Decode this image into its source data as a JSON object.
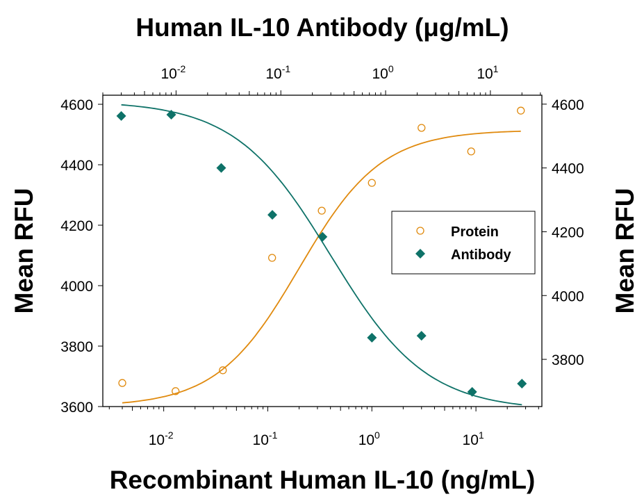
{
  "chart_data": {
    "type": "scatter",
    "title": "Human IL-10 Antibody (μg/mL)",
    "xlabel": "Recombinant Human IL-10 (ng/mL)",
    "x2label": "Human IL-10 Antibody (μg/mL)",
    "ylabel": "Mean RFU",
    "y2label": "Mean RFU",
    "xscale": "log",
    "xlim": [
      0.0026,
      43
    ],
    "x2lim": [
      0.002,
      31
    ],
    "ylim": [
      3600,
      4630
    ],
    "y2lim": [
      3652,
      4628
    ],
    "x_ticks": [
      "10^-2",
      "10^-1",
      "10^0",
      "10^1"
    ],
    "x2_ticks": [
      "10^-2",
      "10^-1",
      "10^0",
      "10^1"
    ],
    "y_ticks": [
      3600,
      3800,
      4000,
      4200,
      4400,
      4600
    ],
    "y2_ticks": [
      3800,
      4000,
      4200,
      4400,
      4600
    ],
    "grid": false,
    "legend": "center-right",
    "series": [
      {
        "name": "Protein",
        "axis": "bottom-left",
        "marker": "open-circle",
        "color": "#E08A0E",
        "x": [
          0.004,
          0.013,
          0.037,
          0.11,
          0.33,
          1,
          3,
          9,
          27
        ],
        "y": [
          3678,
          3651,
          3720,
          4092,
          4248,
          4340,
          4522,
          4444,
          4579
        ],
        "fit": {
          "bottom": 3600,
          "top": 4515,
          "ec50": 0.2,
          "hill": 1.1
        }
      },
      {
        "name": "Antibody",
        "axis": "top-right",
        "marker": "filled-diamond",
        "color": "#0E7268",
        "x": [
          0.003,
          0.009,
          0.027,
          0.083,
          0.25,
          0.74,
          2.2,
          6.7,
          20
        ],
        "y": [
          4563,
          4567,
          4400,
          4253,
          4184,
          3868,
          3874,
          3698,
          3724
        ],
        "fit": {
          "bottom": 3640,
          "top": 4610,
          "ec50": 0.3,
          "hill": 0.95
        }
      }
    ]
  }
}
